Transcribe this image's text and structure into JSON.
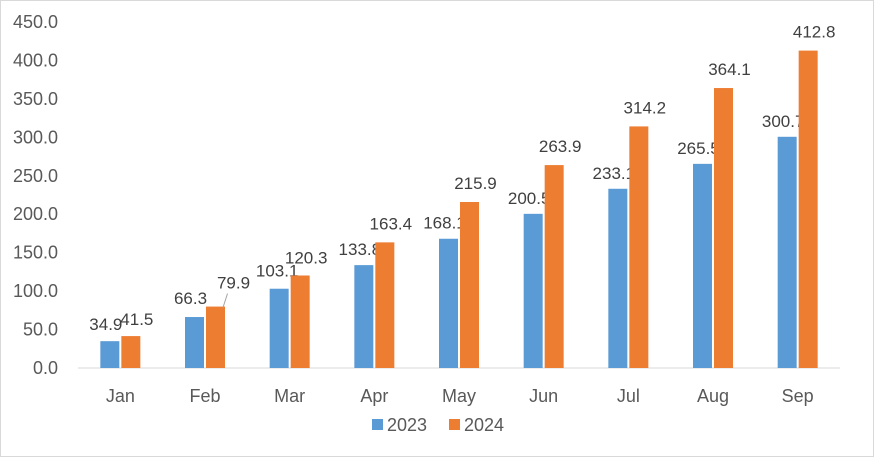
{
  "chart_data": {
    "type": "bar",
    "categories": [
      "Jan",
      "Feb",
      "Mar",
      "Apr",
      "May",
      "Jun",
      "Jul",
      "Aug",
      "Sep"
    ],
    "series": [
      {
        "name": "2023",
        "color": "#5b9bd5",
        "values": [
          34.9,
          66.3,
          103.1,
          133.8,
          168.1,
          200.5,
          233.1,
          265.5,
          300.7
        ]
      },
      {
        "name": "2024",
        "color": "#ed7d31",
        "values": [
          41.5,
          79.9,
          120.3,
          163.4,
          215.9,
          263.9,
          314.2,
          364.1,
          412.8
        ]
      }
    ],
    "ylim": [
      0,
      450
    ],
    "y_ticks": [
      "0.0",
      "50.0",
      "100.0",
      "150.0",
      "200.0",
      "250.0",
      "300.0",
      "350.0",
      "400.0",
      "450.0"
    ],
    "gridlines": false,
    "legend_position": "bottom",
    "data_labels": true
  }
}
